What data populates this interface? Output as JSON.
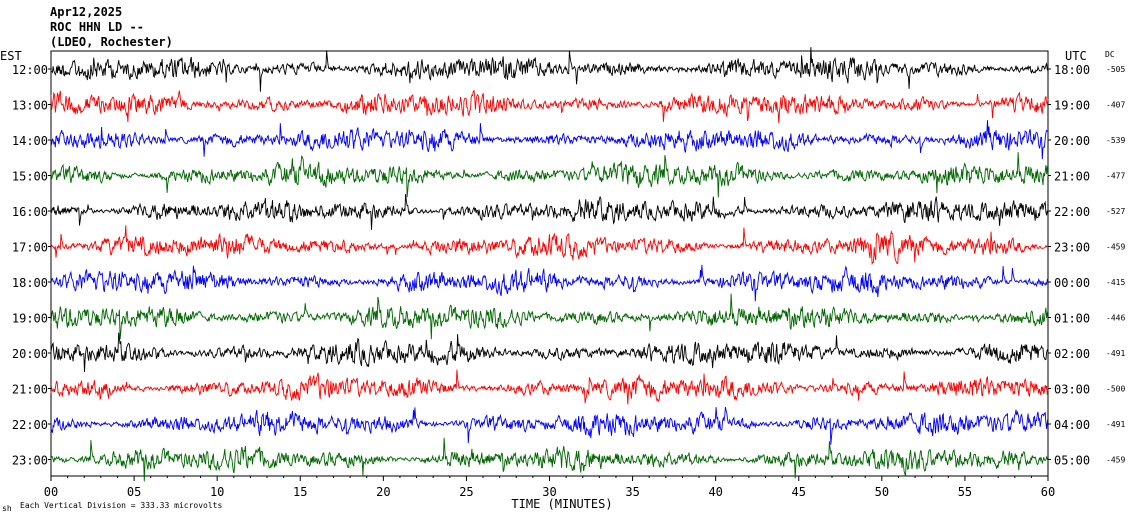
{
  "header": {
    "date": "Apr12,2025",
    "station": "ROC HHN LD --",
    "network": "(LDEO, Rochester)"
  },
  "chart_data": {
    "type": "line",
    "title": "ROC HHN LD --",
    "xlabel": "TIME (MINUTES)",
    "ylabel": "",
    "left_axis_label": "EST",
    "right_axis_label": "UTC",
    "dc_header": "DC",
    "xlim": [
      0,
      60
    ],
    "x_ticks": [
      0,
      5,
      10,
      15,
      20,
      25,
      30,
      35,
      40,
      45,
      50,
      55,
      60
    ],
    "x_tick_labels": [
      "00",
      "05",
      "10",
      "15",
      "20",
      "25",
      "30",
      "35",
      "40",
      "45",
      "50",
      "55",
      "60"
    ],
    "colors": [
      "#000000",
      "#ff0000",
      "#0000ff",
      "#006600"
    ],
    "rows": [
      {
        "est": "12:00",
        "utc": "18:00",
        "dc": "-505"
      },
      {
        "est": "13:00",
        "utc": "19:00",
        "dc": "-407"
      },
      {
        "est": "14:00",
        "utc": "20:00",
        "dc": "-539"
      },
      {
        "est": "15:00",
        "utc": "21:00",
        "dc": "-477"
      },
      {
        "est": "16:00",
        "utc": "22:00",
        "dc": "-527"
      },
      {
        "est": "17:00",
        "utc": "23:00",
        "dc": "-459"
      },
      {
        "est": "18:00",
        "utc": "00:00",
        "dc": "-415"
      },
      {
        "est": "19:00",
        "utc": "01:00",
        "dc": "-446"
      },
      {
        "est": "20:00",
        "utc": "02:00",
        "dc": "-491"
      },
      {
        "est": "21:00",
        "utc": "03:00",
        "dc": "-500"
      },
      {
        "est": "22:00",
        "utc": "04:00",
        "dc": "-491"
      },
      {
        "est": "23:00",
        "utc": "05:00",
        "dc": "-459"
      }
    ],
    "grid": false
  },
  "footer": {
    "scale_note": "Each Vertical Division =  333.33 microvolts",
    "corner_mark": "sh"
  }
}
